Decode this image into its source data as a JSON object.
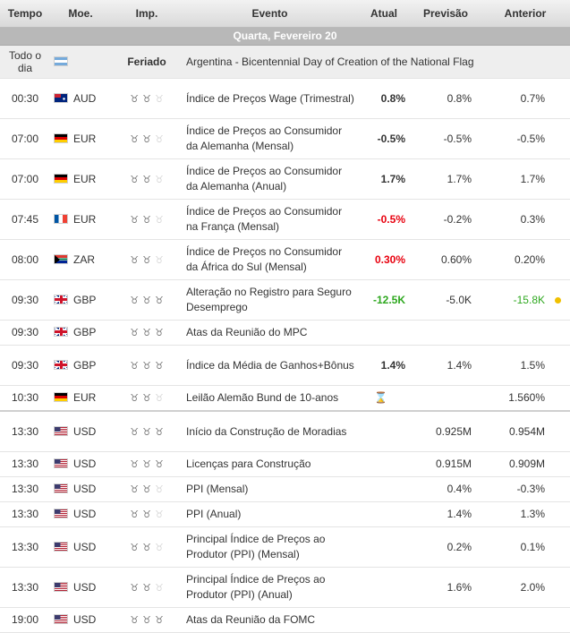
{
  "headers": {
    "time": "Tempo",
    "currency": "Moe.",
    "importance": "Imp.",
    "event": "Evento",
    "actual": "Atual",
    "forecast": "Previsão",
    "previous": "Anterior"
  },
  "date_label": "Quarta, Fevereiro 20",
  "holiday": {
    "time": "Todo o dia",
    "flag": "argentina-flag",
    "label": "Feriado",
    "event": "Argentina - Bicentennial Day of Creation of the National Flag"
  },
  "rows": [
    {
      "time": "00:30",
      "flag": "australia-flag",
      "currency": "AUD",
      "importance": 2,
      "event": "Índice de Preços Wage (Trimestral)",
      "actual": "0.8%",
      "actual_color": "",
      "forecast": "0.8%",
      "previous": "0.7%",
      "previous_color": ""
    },
    {
      "time": "07:00",
      "flag": "germany-flag",
      "currency": "EUR",
      "importance": 2,
      "event": "Índice de Preços ao Consumidor da Alemanha (Mensal)",
      "actual": "-0.5%",
      "actual_color": "",
      "forecast": "-0.5%",
      "previous": "-0.5%",
      "previous_color": ""
    },
    {
      "time": "07:00",
      "flag": "germany-flag",
      "currency": "EUR",
      "importance": 2,
      "event": "Índice de Preços ao Consumidor da Alemanha (Anual)",
      "actual": "1.7%",
      "actual_color": "",
      "forecast": "1.7%",
      "previous": "1.7%",
      "previous_color": ""
    },
    {
      "time": "07:45",
      "flag": "france-flag",
      "currency": "EUR",
      "importance": 2,
      "event": "Índice de Preços ao Consumidor na França (Mensal)",
      "actual": "-0.5%",
      "actual_color": "neg",
      "forecast": "-0.2%",
      "previous": "0.3%",
      "previous_color": ""
    },
    {
      "time": "08:00",
      "flag": "south-africa-flag",
      "currency": "ZAR",
      "importance": 2,
      "event": "Índice de Preços no Consumidor da África do Sul (Mensal)",
      "actual": "0.30%",
      "actual_color": "neg",
      "forecast": "0.60%",
      "previous": "0.20%",
      "previous_color": ""
    },
    {
      "time": "09:30",
      "flag": "uk-flag",
      "currency": "GBP",
      "importance": 3,
      "event": "Alteração no Registro para Seguro Desemprego",
      "actual": "-12.5K",
      "actual_color": "pos",
      "forecast": "-5.0K",
      "previous": "-15.8K",
      "previous_color": "pos",
      "revised": true
    },
    {
      "time": "09:30",
      "flag": "uk-flag",
      "currency": "GBP",
      "importance": 3,
      "event": "Atas da Reunião do MPC",
      "actual": "",
      "actual_color": "",
      "forecast": "",
      "previous": "",
      "previous_color": ""
    },
    {
      "time": "09:30",
      "flag": "uk-flag",
      "currency": "GBP",
      "importance": 3,
      "event": "Índice da Média de Ganhos+Bônus",
      "actual": "1.4%",
      "actual_color": "",
      "forecast": "1.4%",
      "previous": "1.5%",
      "previous_color": ""
    },
    {
      "time": "10:30",
      "flag": "germany-flag",
      "currency": "EUR",
      "importance": 2,
      "event": "Leilão Alemão Bund de 10-anos",
      "actual": "⌛",
      "actual_color": "pending",
      "forecast": "",
      "previous": "1.560%",
      "previous_color": "",
      "separator": true
    },
    {
      "time": "13:30",
      "flag": "usa-flag",
      "currency": "USD",
      "importance": 3,
      "event": "Início da Construção de Moradias",
      "actual": "",
      "actual_color": "",
      "forecast": "0.925M",
      "previous": "0.954M",
      "previous_color": ""
    },
    {
      "time": "13:30",
      "flag": "usa-flag",
      "currency": "USD",
      "importance": 3,
      "event": "Licenças para Construção",
      "actual": "",
      "actual_color": "",
      "forecast": "0.915M",
      "previous": "0.909M",
      "previous_color": ""
    },
    {
      "time": "13:30",
      "flag": "usa-flag",
      "currency": "USD",
      "importance": 2,
      "event": "PPI (Mensal)",
      "actual": "",
      "actual_color": "",
      "forecast": "0.4%",
      "previous": "-0.3%",
      "previous_color": ""
    },
    {
      "time": "13:30",
      "flag": "usa-flag",
      "currency": "USD",
      "importance": 2,
      "event": "PPI (Anual)",
      "actual": "",
      "actual_color": "",
      "forecast": "1.4%",
      "previous": "1.3%",
      "previous_color": ""
    },
    {
      "time": "13:30",
      "flag": "usa-flag",
      "currency": "USD",
      "importance": 2,
      "event": "Principal Índice de Preços ao Produtor (PPI) (Mensal)",
      "actual": "",
      "actual_color": "",
      "forecast": "0.2%",
      "previous": "0.1%",
      "previous_color": ""
    },
    {
      "time": "13:30",
      "flag": "usa-flag",
      "currency": "USD",
      "importance": 2,
      "event": "Principal Índice de Preços ao Produtor (PPI) (Anual)",
      "actual": "",
      "actual_color": "",
      "forecast": "1.6%",
      "previous": "2.0%",
      "previous_color": ""
    },
    {
      "time": "19:00",
      "flag": "usa-flag",
      "currency": "USD",
      "importance": 3,
      "event": "Atas da Reunião da FOMC",
      "actual": "",
      "actual_color": "",
      "forecast": "",
      "previous": "",
      "previous_color": ""
    }
  ],
  "colors": {
    "negative": "#e8000e",
    "positive": "#2ea81f",
    "revised_dot": "#f0c000",
    "date_bar": "#b8b8b8"
  }
}
